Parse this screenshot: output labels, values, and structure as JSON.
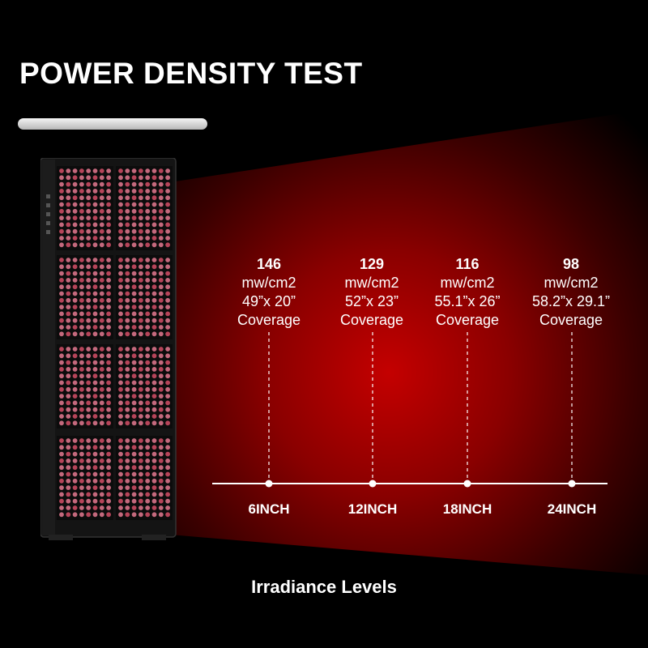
{
  "header": {
    "title": "POWER DENSITY TEST"
  },
  "colors": {
    "beam": "#c80000",
    "background": "#000000",
    "led": "#d8738a"
  },
  "measurements": [
    {
      "value": "146",
      "unit": "mw/cm2",
      "size": "49”x 20”",
      "coverage": "Coverage",
      "distance": "6INCH"
    },
    {
      "value": "129",
      "unit": "mw/cm2",
      "size": "52”x 23”",
      "coverage": "Coverage",
      "distance": "12INCH"
    },
    {
      "value": "116",
      "unit": "mw/cm2",
      "size": "55.1”x 26”",
      "coverage": "Coverage",
      "distance": "18INCH"
    },
    {
      "value": "98",
      "unit": "mw/cm2",
      "size": "58.2”x 29.1”",
      "coverage": "Coverage",
      "distance": "24INCH"
    }
  ],
  "footer": {
    "caption": "Irradiance Levels"
  }
}
